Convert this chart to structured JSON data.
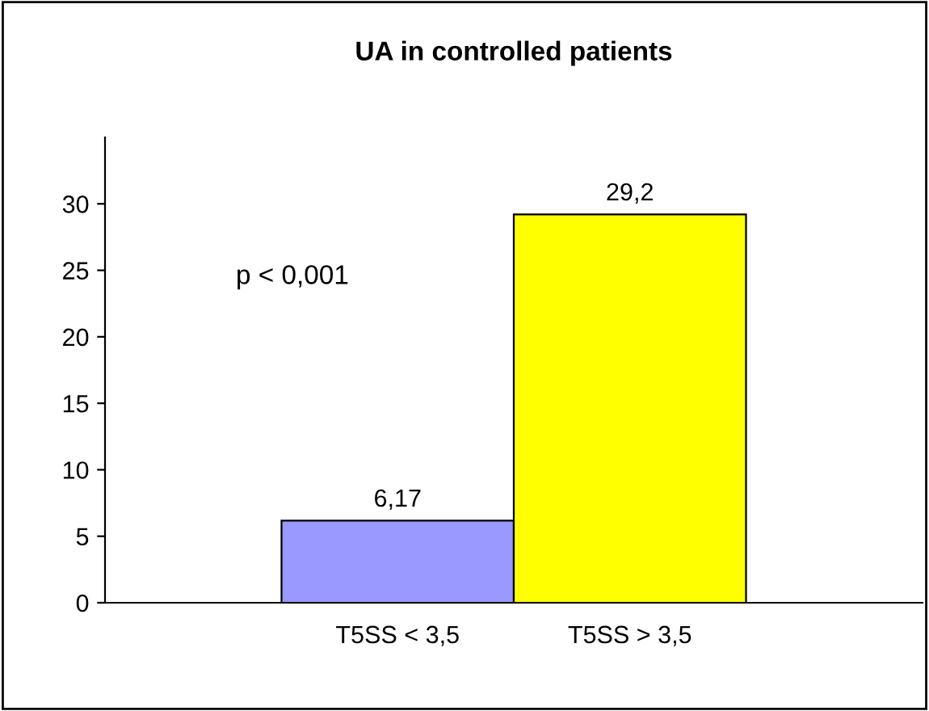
{
  "chart_data": {
    "type": "bar",
    "title": "UA in controlled patients",
    "categories": [
      "T5SS < 3,5",
      "T5SS > 3,5"
    ],
    "values": [
      6.17,
      29.2
    ],
    "colors": [
      "#9999ff",
      "#ffff00"
    ],
    "value_labels": [
      "6,17",
      "29,2"
    ],
    "annotations": [
      "p < 0,001"
    ],
    "ylim": [
      0,
      35
    ],
    "yticks": [
      0,
      5,
      10,
      15,
      20,
      25,
      30
    ],
    "grid": false,
    "legend": false
  }
}
